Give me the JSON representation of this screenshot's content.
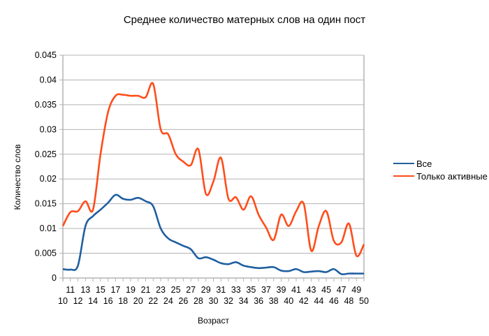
{
  "chart_data": {
    "type": "line",
    "title": "Среднее количество матерных слов на один пост",
    "xlabel": "Возраст",
    "ylabel": "Количество слов",
    "ylim": [
      0,
      0.045
    ],
    "yticks": [
      "0",
      "0.005",
      "0.01",
      "0.015",
      "0.02",
      "0.025",
      "0.03",
      "0.035",
      "0.04",
      "0.045"
    ],
    "grid": true,
    "legend_position": "right",
    "x": [
      10,
      11,
      12,
      13,
      14,
      15,
      16,
      17,
      18,
      19,
      20,
      21,
      22,
      23,
      24,
      25,
      26,
      27,
      28,
      29,
      30,
      31,
      32,
      33,
      34,
      35,
      36,
      37,
      38,
      39,
      40,
      41,
      42,
      43,
      44,
      45,
      46,
      47,
      48,
      49,
      50
    ],
    "series": [
      {
        "name": "Все",
        "color": "#1f5fa0",
        "values": [
          0.0018,
          0.0017,
          0.0025,
          0.0105,
          0.0125,
          0.0138,
          0.0152,
          0.0168,
          0.016,
          0.0158,
          0.0162,
          0.0155,
          0.0145,
          0.01,
          0.008,
          0.0072,
          0.0065,
          0.0058,
          0.004,
          0.0042,
          0.0037,
          0.003,
          0.0028,
          0.0032,
          0.0025,
          0.0022,
          0.002,
          0.0021,
          0.0022,
          0.0015,
          0.0014,
          0.0018,
          0.0012,
          0.0013,
          0.0014,
          0.0012,
          0.0018,
          0.0008,
          0.0009,
          0.0009,
          0.0009
        ]
      },
      {
        "name": "Только активные",
        "color": "#ff4d1a",
        "values": [
          0.0105,
          0.0133,
          0.0135,
          0.0155,
          0.0138,
          0.025,
          0.0335,
          0.0368,
          0.037,
          0.0368,
          0.0368,
          0.0365,
          0.0392,
          0.03,
          0.029,
          0.025,
          0.0235,
          0.0228,
          0.026,
          0.017,
          0.0195,
          0.0243,
          0.016,
          0.0163,
          0.0138,
          0.0165,
          0.0128,
          0.0102,
          0.0077,
          0.0128,
          0.0105,
          0.0135,
          0.015,
          0.0055,
          0.0105,
          0.0135,
          0.0075,
          0.0072,
          0.011,
          0.0045,
          0.0068
        ]
      }
    ]
  }
}
